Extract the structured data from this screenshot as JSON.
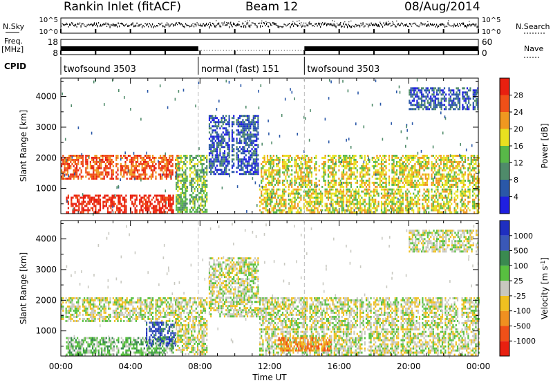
{
  "header": {
    "title": "Rankin Inlet (fitACF)",
    "beam": "Beam 12",
    "date": "08/Aug/2014"
  },
  "side_labels": {
    "nsky": "N.Sky",
    "nsearch": "N.Search",
    "freq": "Freq.",
    "mhz": "[MHz]",
    "nave": "Nave",
    "cpid": "CPID"
  },
  "status_panels": {
    "noise_ticks_left": [
      "10^5",
      "10^0"
    ],
    "noise_ticks_right": [
      "10^5",
      "10^0"
    ],
    "freq_ticks_left": [
      "18",
      "8"
    ],
    "nave_ticks_right": [
      "60",
      "0"
    ],
    "cpid_segments": [
      {
        "label": "twofsound 3503",
        "start": 0,
        "end": 7.9
      },
      {
        "label": "normal (fast) 151",
        "start": 7.9,
        "end": 14.0
      },
      {
        "label": "twofsound 3503",
        "start": 14.0,
        "end": 24
      }
    ]
  },
  "chart_data": [
    {
      "type": "heatmap",
      "ylabel": "Slant Range [km]",
      "xlim": [
        0,
        24
      ],
      "ylim": [
        180,
        4600
      ],
      "yticks": [
        1000,
        2000,
        3000,
        4000
      ],
      "colorbar": {
        "label": "Power [dB]",
        "ticks": [
          "28",
          "24",
          "20",
          "16",
          "12",
          "8",
          "4"
        ],
        "colors": [
          "#1f1fe0",
          "#2a58a8",
          "#4f8b6a",
          "#58b848",
          "#e8e020",
          "#f09820",
          "#f05018",
          "#e82010"
        ]
      },
      "echo_regions": [
        {
          "t0": 0.0,
          "t1": 6.8,
          "r0": 1300,
          "r1": 2100,
          "level": 6
        },
        {
          "t0": 0.3,
          "t1": 6.5,
          "r0": 250,
          "r1": 800,
          "level": 7
        },
        {
          "t0": 6.6,
          "t1": 8.4,
          "r0": 250,
          "r1": 2100,
          "level": 3
        },
        {
          "t0": 8.5,
          "t1": 11.3,
          "r0": 1500,
          "r1": 3400,
          "level": 1
        },
        {
          "t0": 11.4,
          "t1": 24.0,
          "r0": 1050,
          "r1": 2100,
          "level": 4
        },
        {
          "t0": 11.4,
          "t1": 24.0,
          "r0": 250,
          "r1": 1000,
          "level": 4
        },
        {
          "t0": 20.0,
          "t1": 24.0,
          "r0": 3600,
          "r1": 4300,
          "level": 1
        }
      ]
    },
    {
      "type": "heatmap",
      "ylabel": "Slant Range [km]",
      "xlabel": "Time UT",
      "xlim": [
        0,
        24
      ],
      "ylim": [
        180,
        4600
      ],
      "xticks": [
        "00:00",
        "04:00",
        "08:00",
        "12:00",
        "16:00",
        "20:00",
        "00:00"
      ],
      "yticks": [
        1000,
        2000,
        3000,
        4000
      ],
      "colorbar": {
        "label": "Velocity [m s^-1]",
        "ticks": [
          "1000",
          "500",
          "100",
          "25",
          "-25",
          "-100",
          "-500",
          "-1000"
        ],
        "colors": [
          "#e82010",
          "#f05018",
          "#f09020",
          "#f0c020",
          "#c8c8c0",
          "#58c040",
          "#3a8a50",
          "#3a58b8",
          "#1f2fc0"
        ]
      },
      "echo_regions": [
        {
          "t0": 0.0,
          "t1": 6.8,
          "r0": 1300,
          "r1": 2100,
          "level": 4
        },
        {
          "t0": 0.3,
          "t1": 6.5,
          "r0": 250,
          "r1": 800,
          "level": 5
        },
        {
          "t0": 4.8,
          "t1": 6.6,
          "r0": 500,
          "r1": 1300,
          "level": 7
        },
        {
          "t0": 6.6,
          "t1": 8.4,
          "r0": 250,
          "r1": 2100,
          "level": 4
        },
        {
          "t0": 8.5,
          "t1": 11.3,
          "r0": 1500,
          "r1": 3400,
          "level": 4
        },
        {
          "t0": 11.4,
          "t1": 24.0,
          "r0": 1050,
          "r1": 2100,
          "level": 4
        },
        {
          "t0": 11.4,
          "t1": 24.0,
          "r0": 250,
          "r1": 1000,
          "level": 4
        },
        {
          "t0": 12.5,
          "t1": 15.5,
          "r0": 350,
          "r1": 800,
          "level": 2
        },
        {
          "t0": 20.0,
          "t1": 24.0,
          "r0": 3600,
          "r1": 4300,
          "level": 4
        }
      ]
    }
  ]
}
